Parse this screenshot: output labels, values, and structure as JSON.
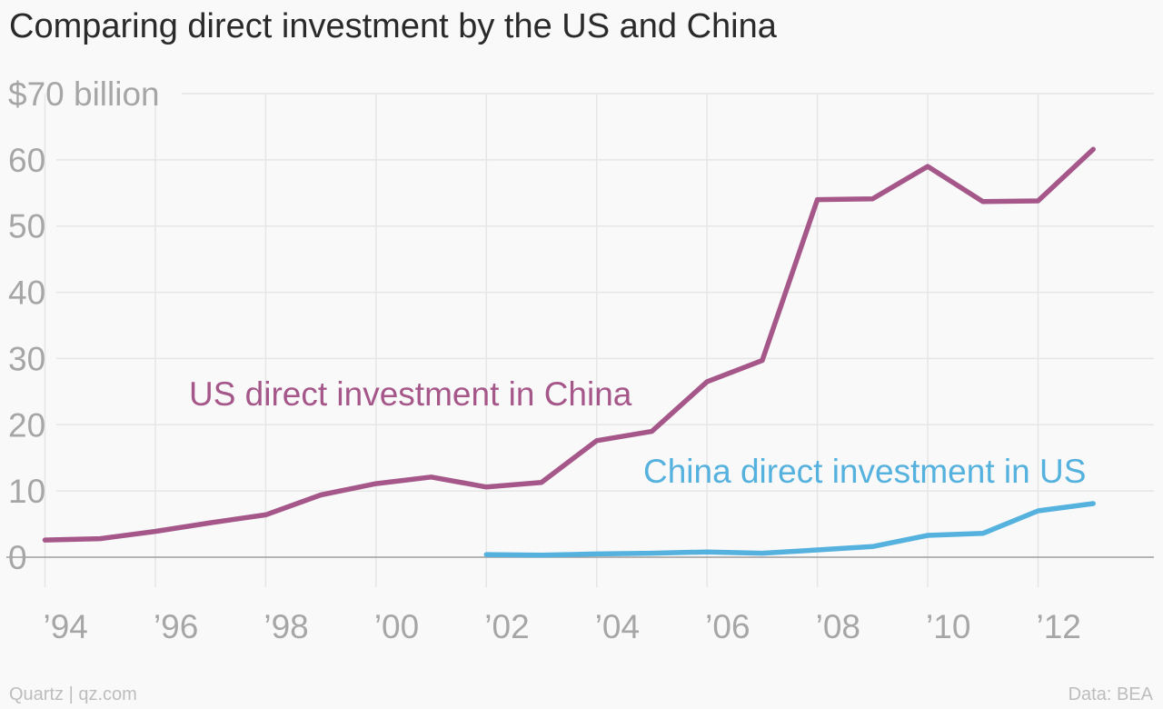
{
  "title": "Comparing direct investment by the US and China",
  "footer": {
    "left": "Quartz | qz.com",
    "right": "Data: BEA"
  },
  "colors": {
    "us_series": "#a6578a",
    "china_series": "#55b1de",
    "grid": "#e6e6e6",
    "baseline": "#9e9e9e",
    "tick_text": "#a6a6a6"
  },
  "chart_data": {
    "type": "line",
    "title": "Comparing direct investment by the US and China",
    "xlabel": "",
    "ylabel": "",
    "xlim": [
      1993.3,
      2014.1
    ],
    "ylim": [
      0,
      70
    ],
    "x_ticks": [
      1994,
      1996,
      1998,
      2000,
      2002,
      2004,
      2006,
      2008,
      2010,
      2012
    ],
    "x_tick_labels": [
      "’94",
      "’96",
      "’98",
      "’00",
      "’02",
      "’04",
      "’06",
      "’08",
      "’10",
      "’12"
    ],
    "y_ticks": [
      0,
      10,
      20,
      30,
      40,
      50,
      60,
      70
    ],
    "y_tick_labels": [
      "0",
      "10",
      "20",
      "30",
      "40",
      "50",
      "60",
      "$70 billion"
    ],
    "grid": true,
    "series": [
      {
        "name": "US direct investment in China",
        "x": [
          1994,
          1995,
          1996,
          1997,
          1998,
          1999,
          2000,
          2001,
          2002,
          2003,
          2004,
          2005,
          2006,
          2007,
          2008,
          2009,
          2010,
          2011,
          2012,
          2013
        ],
        "values": [
          2.6,
          2.8,
          3.9,
          5.2,
          6.4,
          9.4,
          11.1,
          12.1,
          10.6,
          11.3,
          17.6,
          19.0,
          26.5,
          29.7,
          54.0,
          54.1,
          59.0,
          53.7,
          53.8,
          61.6
        ]
      },
      {
        "name": "China direct investment in US",
        "x": [
          2002,
          2003,
          2004,
          2005,
          2006,
          2007,
          2008,
          2009,
          2010,
          2011,
          2012,
          2013
        ],
        "values": [
          0.4,
          0.3,
          0.5,
          0.6,
          0.8,
          0.6,
          1.1,
          1.6,
          3.3,
          3.6,
          7.0,
          8.1
        ]
      }
    ]
  }
}
